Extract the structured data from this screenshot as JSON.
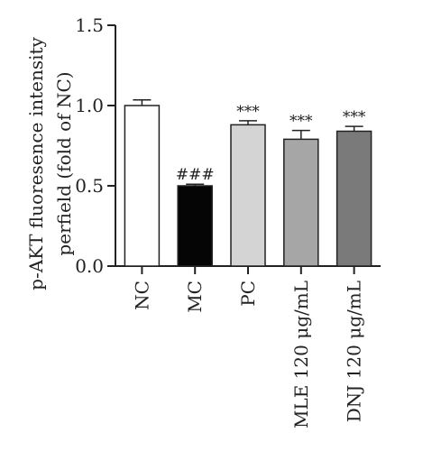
{
  "chart_data": {
    "type": "bar",
    "title": "",
    "xlabel": "",
    "ylabel_lines": [
      "p-AKT fluoresence intensity",
      "perfield (fold of NC)"
    ],
    "ylim": [
      0,
      1.5
    ],
    "yticks": [
      0.0,
      0.5,
      1.0,
      1.5
    ],
    "ytick_labels": [
      "0.0",
      "0.5",
      "1.0",
      "1.5"
    ],
    "categories": [
      "NC",
      "MC",
      "PC",
      "MLE 120 μg/mL",
      "DNJ 120 μg/mL"
    ],
    "values": [
      1.0,
      0.5,
      0.88,
      0.79,
      0.84
    ],
    "errors": [
      0.035,
      0.01,
      0.025,
      0.055,
      0.03
    ],
    "bar_colors": [
      "#ffffff",
      "#050505",
      "#d4d4d4",
      "#a6a6a6",
      "#7a7a7a"
    ],
    "significance": [
      "",
      "###",
      "***",
      "***",
      "***"
    ],
    "grid": false,
    "legend": "none"
  }
}
